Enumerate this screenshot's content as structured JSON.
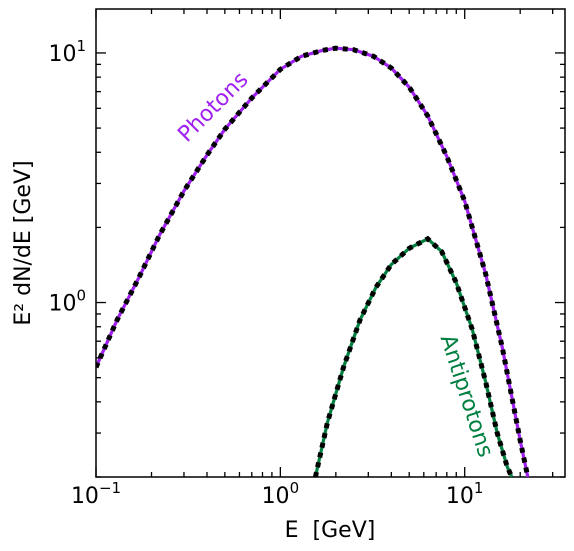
{
  "chart_data": {
    "type": "line",
    "xlabel": "E  [GeV]",
    "ylabel": "E² dN/dE [GeV]",
    "x_scale": "log",
    "y_scale": "log",
    "xlim": [
      0.1,
      35
    ],
    "ylim": [
      0.2,
      15
    ],
    "x_ticks": [
      {
        "value": 0.1,
        "base": "10",
        "exp": "−1"
      },
      {
        "value": 1,
        "base": "10",
        "exp": "0"
      },
      {
        "value": 10,
        "base": "10",
        "exp": "1"
      }
    ],
    "y_ticks": [
      {
        "value": 1,
        "base": "10",
        "exp": "0"
      },
      {
        "value": 10,
        "base": "10",
        "exp": "1"
      }
    ],
    "grid": false,
    "legend": "none",
    "series": [
      {
        "name": "Photons",
        "color": "#a020f0",
        "overlay_color": "#000000",
        "x": [
          0.1,
          0.13,
          0.17,
          0.22,
          0.3,
          0.4,
          0.5,
          0.7,
          1.0,
          1.3,
          1.7,
          2.0,
          2.5,
          3.2,
          4.0,
          5.0,
          6.3,
          8.0,
          10.0,
          13.0,
          16.0,
          20.0,
          22.0
        ],
        "y": [
          0.55,
          0.85,
          1.25,
          1.85,
          2.8,
          3.9,
          4.95,
          6.6,
          8.6,
          9.7,
          10.25,
          10.45,
          10.3,
          9.7,
          8.7,
          7.3,
          5.6,
          3.85,
          2.55,
          1.3,
          0.66,
          0.28,
          0.2
        ],
        "label_position": "upper-left"
      },
      {
        "name": "Antiprotons",
        "color": "#008040",
        "overlay_color": "#000000",
        "x": [
          1.55,
          1.8,
          2.2,
          2.7,
          3.3,
          4.0,
          5.0,
          6.3,
          7.5,
          9.0,
          11.0,
          13.0,
          15.0,
          17.0,
          18.0
        ],
        "y": [
          0.2,
          0.33,
          0.55,
          0.85,
          1.15,
          1.42,
          1.65,
          1.8,
          1.6,
          1.2,
          0.78,
          0.48,
          0.3,
          0.22,
          0.2
        ],
        "label_position": "right"
      }
    ]
  }
}
